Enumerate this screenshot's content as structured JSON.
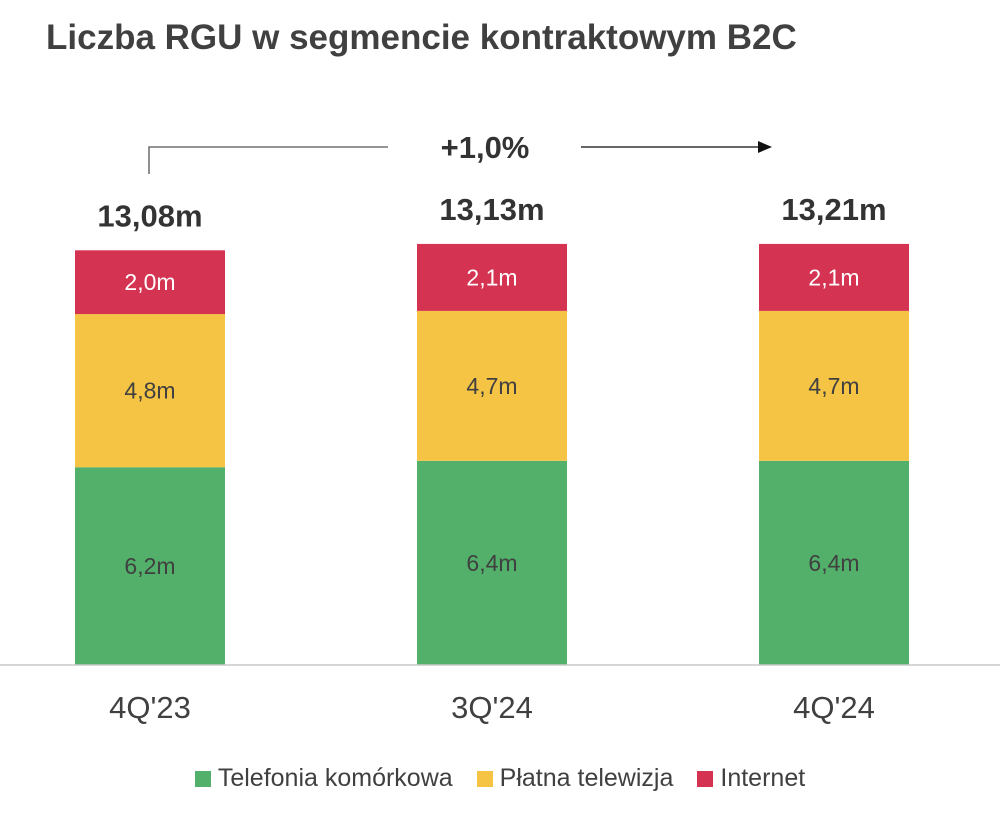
{
  "chart_data": {
    "type": "bar",
    "stacked": true,
    "title": "Liczba RGU w segmencie kontraktowym B2C",
    "xlabel": "",
    "ylabel": "",
    "grid": false,
    "legend_position": "bottom",
    "categories": [
      "4Q'23",
      "3Q'24",
      "4Q'24"
    ],
    "series": [
      {
        "name": "Telefonia komórkowa",
        "color": "#52b06a",
        "values": [
          6.2,
          6.4,
          6.4
        ],
        "labels": [
          "6,2m",
          "6,4m",
          "6,4m"
        ]
      },
      {
        "name": "Płatna telewizja",
        "color": "#f5c445",
        "values": [
          4.8,
          4.7,
          4.7
        ],
        "labels": [
          "4,8m",
          "4,7m",
          "4,7m"
        ]
      },
      {
        "name": "Internet",
        "color": "#d43351",
        "values": [
          2.0,
          2.1,
          2.1
        ],
        "labels": [
          "2,0m",
          "2,1m",
          "2,1m"
        ]
      }
    ],
    "totals": [
      13.08,
      13.13,
      13.21
    ],
    "total_labels": [
      "13,08m",
      "13,13m",
      "13,21m"
    ],
    "annotations": [
      {
        "text": "+1,0%",
        "from": "4Q'23",
        "to": "4Q'24"
      }
    ]
  }
}
